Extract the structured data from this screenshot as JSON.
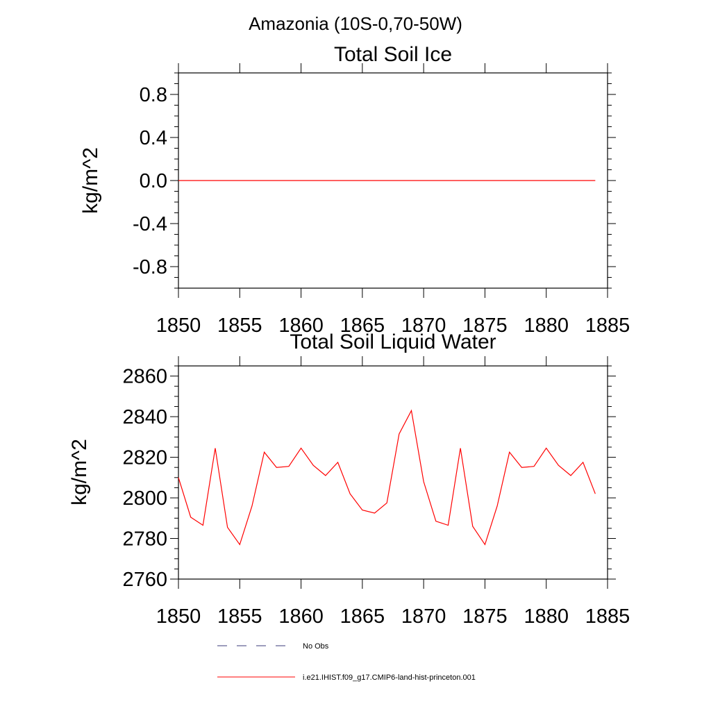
{
  "figure": {
    "suptitle": "Amazonia (10S-0,70-50W)"
  },
  "chart_data": [
    {
      "type": "line",
      "title": "Total Soil Ice",
      "xlabel": "",
      "ylabel": "kg/m^2",
      "xlim": [
        1850,
        1885
      ],
      "ylim": [
        -1.0,
        1.0
      ],
      "xticks": [
        1850,
        1855,
        1860,
        1865,
        1870,
        1875,
        1880,
        1885
      ],
      "xticklabels": [
        "1850",
        "1855",
        "1860",
        "1865",
        "1870",
        "1875",
        "1880",
        "1885"
      ],
      "yticks": [
        0.8,
        0.4,
        0.0,
        -0.4,
        -0.8
      ],
      "yticklabels": [
        "0.8",
        "0.4",
        "0.0",
        "-0.4",
        "-0.8"
      ],
      "grid": false,
      "series": [
        {
          "name": "i.e21.IHIST.f09_g17.CMIP6-land-hist-princeton.001",
          "color": "#ff0000",
          "x": [
            1850,
            1851,
            1852,
            1853,
            1854,
            1855,
            1856,
            1857,
            1858,
            1859,
            1860,
            1861,
            1862,
            1863,
            1864,
            1865,
            1866,
            1867,
            1868,
            1869,
            1870,
            1871,
            1872,
            1873,
            1874,
            1875,
            1876,
            1877,
            1878,
            1879,
            1880,
            1881,
            1882,
            1883,
            1884
          ],
          "y": [
            0,
            0,
            0,
            0,
            0,
            0,
            0,
            0,
            0,
            0,
            0,
            0,
            0,
            0,
            0,
            0,
            0,
            0,
            0,
            0,
            0,
            0,
            0,
            0,
            0,
            0,
            0,
            0,
            0,
            0,
            0,
            0,
            0,
            0,
            0
          ]
        }
      ]
    },
    {
      "type": "line",
      "title": "Total Soil Liquid Water",
      "xlabel": "",
      "ylabel": "kg/m^2",
      "xlim": [
        1850,
        1885
      ],
      "ylim": [
        2760,
        2865
      ],
      "xticks": [
        1850,
        1855,
        1860,
        1865,
        1870,
        1875,
        1880,
        1885
      ],
      "xticklabels": [
        "1850",
        "1855",
        "1860",
        "1865",
        "1870",
        "1875",
        "1880",
        "1885"
      ],
      "yticks": [
        2860,
        2840,
        2820,
        2800,
        2780,
        2760
      ],
      "yticklabels": [
        "2860",
        "2840",
        "2820",
        "2800",
        "2780",
        "2760"
      ],
      "grid": false,
      "series": [
        {
          "name": "i.e21.IHIST.f09_g17.CMIP6-land-hist-princeton.001",
          "color": "#ff0000",
          "x": [
            1850,
            1851,
            1852,
            1853,
            1854,
            1855,
            1856,
            1857,
            1858,
            1859,
            1860,
            1861,
            1862,
            1863,
            1864,
            1865,
            1866,
            1867,
            1868,
            1869,
            1870,
            1871,
            1872,
            1873,
            1874,
            1875,
            1876,
            1877,
            1878,
            1879,
            1880,
            1881,
            1882,
            1883,
            1884
          ],
          "y": [
            2810,
            2790.5,
            2786.5,
            2824.5,
            2785.5,
            2777,
            2796,
            2822.5,
            2815,
            2815.5,
            2824.5,
            2816,
            2811,
            2817.5,
            2802,
            2794,
            2792.5,
            2797.5,
            2831.5,
            2843,
            2808,
            2788.5,
            2786.5,
            2824.5,
            2786,
            2777,
            2796,
            2822.5,
            2815,
            2815.5,
            2824.5,
            2816,
            2811,
            2817.5,
            2802
          ]
        }
      ]
    }
  ],
  "legend": {
    "placement": "bottom-center",
    "entries": [
      {
        "label": "No Obs",
        "style": "dashed",
        "color": "#3a3a78"
      },
      {
        "label": "i.e21.IHIST.f09_g17.CMIP6-land-hist-princeton.001",
        "style": "solid",
        "color": "#ff0000"
      }
    ]
  }
}
